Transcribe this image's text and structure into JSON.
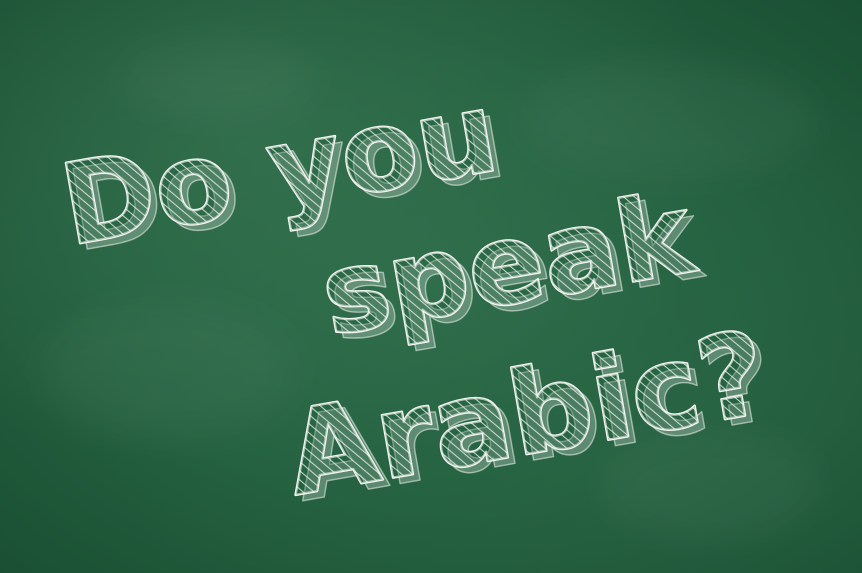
{
  "image": {
    "colors": {
      "board": "#23603f",
      "chalk": "#f4f6f1"
    },
    "lines": [
      {
        "text": "Do you"
      },
      {
        "text": "speak"
      },
      {
        "text": "Arabic?"
      }
    ]
  }
}
